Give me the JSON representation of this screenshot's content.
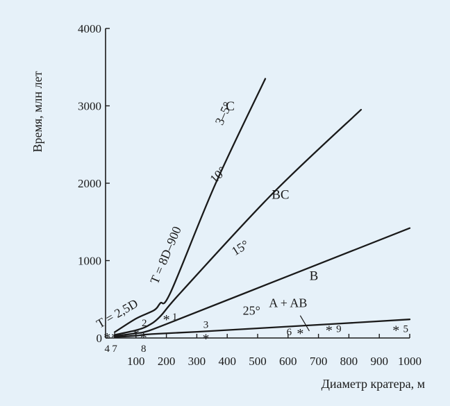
{
  "chart_data": {
    "type": "line",
    "xlabel": "Диаметр кратера, м",
    "ylabel": "Время, млн лет",
    "xlim": [
      0,
      1000
    ],
    "ylim": [
      0,
      4000
    ],
    "x_ticks": [
      "100",
      "200",
      "300",
      "400",
      "500",
      "600",
      "700",
      "800",
      "900",
      "1000"
    ],
    "x_origin_label": "0",
    "y_ticks": [
      "0",
      "1000",
      "2000",
      "3000",
      "4000"
    ],
    "grid": false,
    "series": [
      {
        "name": "3–5°",
        "points": [
          [
            30,
            75
          ],
          [
            100,
            250
          ],
          [
            160,
            360
          ],
          [
            180,
            450
          ],
          [
            215,
            600
          ],
          [
            360,
            1980
          ],
          [
            525,
            3350
          ]
        ]
      },
      {
        "name": "10°",
        "points": [
          [
            30,
            40
          ],
          [
            100,
            100
          ],
          [
            140,
            160
          ],
          [
            180,
            280
          ],
          [
            250,
            600
          ],
          [
            550,
            1870
          ],
          [
            840,
            2950
          ]
        ]
      },
      {
        "name": "15°",
        "points": [
          [
            30,
            25
          ],
          [
            100,
            60
          ],
          [
            130,
            80
          ],
          [
            200,
            180
          ],
          [
            600,
            800
          ],
          [
            1000,
            1420
          ]
        ]
      },
      {
        "name": "25°",
        "points": [
          [
            30,
            12
          ],
          [
            100,
            30
          ],
          [
            150,
            50
          ],
          [
            300,
            80
          ],
          [
            700,
            170
          ],
          [
            1000,
            240
          ]
        ]
      }
    ],
    "annotations": [
      {
        "text": "T = 2,5D",
        "x": 45,
        "y": 270,
        "angle": -30
      },
      {
        "text": "T = 8D–900",
        "x": 210,
        "y": 1050,
        "angle": -67
      },
      {
        "text": "3–5°",
        "x": 400,
        "y": 2880,
        "angle": -66
      },
      {
        "text": "10°",
        "x": 380,
        "y": 2070,
        "angle": -45
      },
      {
        "text": "15°",
        "x": 450,
        "y": 1120,
        "angle": -32
      },
      {
        "text": "25°",
        "x": 480,
        "y": 300,
        "angle": 0
      },
      {
        "text": "C",
        "x": 410,
        "y": 2940,
        "angle": 0
      },
      {
        "text": "BC",
        "x": 575,
        "y": 1800,
        "angle": 0
      },
      {
        "text": "B",
        "x": 685,
        "y": 750,
        "angle": 0
      },
      {
        "text": "A + AB",
        "x": 600,
        "y": 400,
        "angle": 0
      }
    ],
    "points": [
      {
        "label": "1",
        "x": 200,
        "y": 260,
        "label_dx": 12,
        "label_dy": -2
      },
      {
        "label": "2",
        "x": 100,
        "y": 70,
        "label_dx": 12,
        "label_dy": -14
      },
      {
        "label": "3",
        "x": 330,
        "y": 15,
        "label_dx": 0,
        "label_dy": -18
      },
      {
        "label": "4",
        "x": 5,
        "y": 25,
        "label_dx": 0,
        "label_dy": 18
      },
      {
        "label": "5",
        "x": 955,
        "y": 120,
        "label_dx": 14,
        "label_dy": 0
      },
      {
        "label": "6",
        "x": 640,
        "y": 80,
        "label_dx": -16,
        "label_dy": 0
      },
      {
        "label": "7",
        "x": 30,
        "y": 25,
        "label_dx": 0,
        "label_dy": 18
      },
      {
        "label": "8",
        "x": 125,
        "y": 25,
        "label_dx": 0,
        "label_dy": 18
      },
      {
        "label": "9",
        "x": 735,
        "y": 120,
        "label_dx": 14,
        "label_dy": 0
      }
    ],
    "ab_leader": {
      "from": [
        640,
        290
      ],
      "to": [
        670,
        90
      ]
    }
  }
}
